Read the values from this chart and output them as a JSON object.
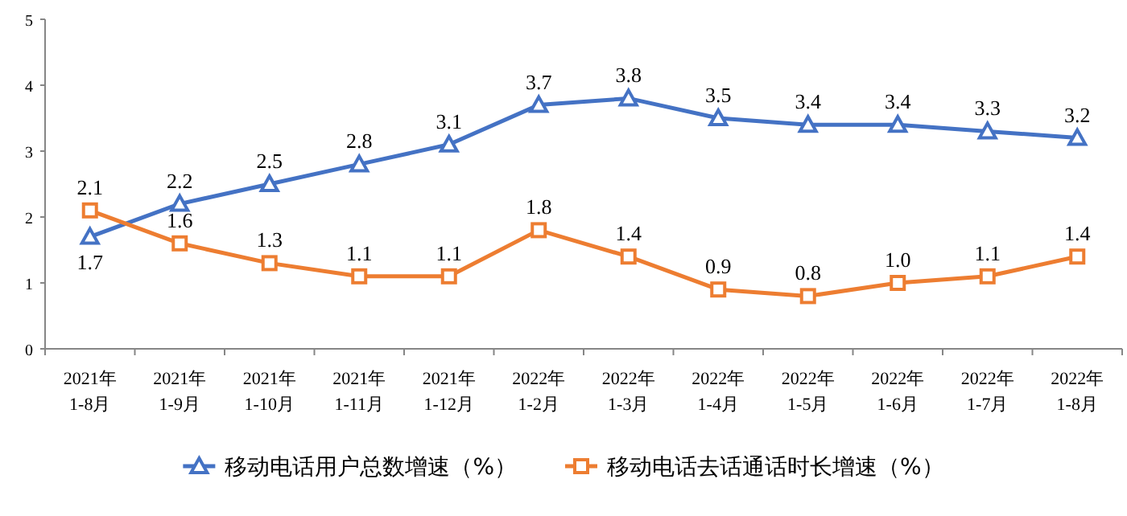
{
  "chart_data": {
    "type": "line",
    "categories": [
      "2021年\n1-8月",
      "2021年\n1-9月",
      "2021年\n1-10月",
      "2021年\n1-11月",
      "2021年\n1-12月",
      "2022年\n1-2月",
      "2022年\n1-3月",
      "2022年\n1-4月",
      "2022年\n1-5月",
      "2022年\n1-6月",
      "2022年\n1-7月",
      "2022年\n1-8月"
    ],
    "series": [
      {
        "name": "移动电话用户总数增速（%）",
        "color": "#4472c4",
        "marker": "triangle",
        "values": [
          1.7,
          2.2,
          2.5,
          2.8,
          3.1,
          3.7,
          3.8,
          3.5,
          3.4,
          3.4,
          3.3,
          3.2
        ],
        "value_labels": [
          "1.7",
          "2.2",
          "2.5",
          "2.8",
          "3.1",
          "3.7",
          "3.8",
          "3.5",
          "3.4",
          "3.4",
          "3.3",
          "3.2"
        ]
      },
      {
        "name": "移动电话去话通话时长增速（%）",
        "color": "#ed7d31",
        "marker": "square",
        "values": [
          2.1,
          1.6,
          1.3,
          1.1,
          1.1,
          1.8,
          1.4,
          0.9,
          0.8,
          1.0,
          1.1,
          1.4
        ],
        "value_labels": [
          "2.1",
          "1.6",
          "1.3",
          "1.1",
          "1.1",
          "1.8",
          "1.4",
          "0.9",
          "0.8",
          "1.0",
          "1.1",
          "1.4"
        ]
      }
    ],
    "ylim": [
      0,
      5
    ],
    "yticks": [
      0,
      1,
      2,
      3,
      4,
      5
    ],
    "legend": "bottom",
    "grid": false,
    "line_style": "solid"
  }
}
